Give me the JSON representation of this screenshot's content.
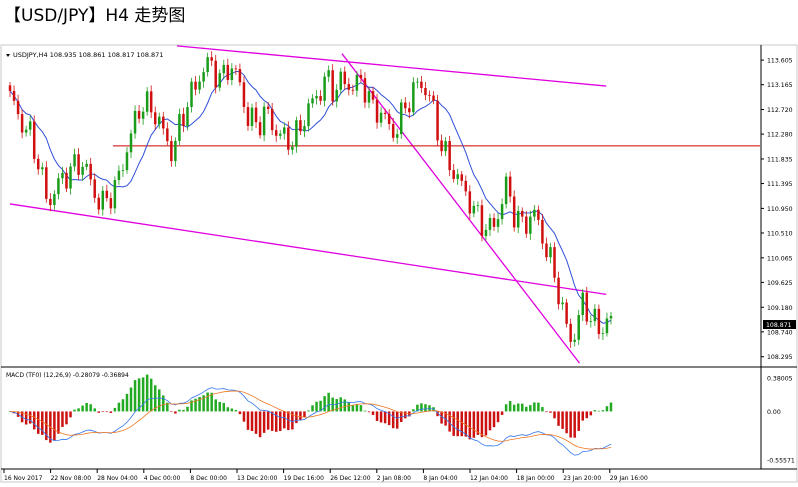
{
  "title": "【USD/JPY】H4 走势图",
  "chart_data": {
    "type": "candlestick",
    "symbol_header": "USDJPY,H4  108.935 108.861 108.817 108.871",
    "price_axis": {
      "ticks": [
        "113.605",
        "113.165",
        "112.720",
        "112.280",
        "111.835",
        "111.395",
        "110.950",
        "110.510",
        "110.065",
        "109.625",
        "109.180",
        "108.740",
        "108.295"
      ],
      "range": [
        108.2,
        113.75
      ],
      "current_price": "108.871"
    },
    "time_axis": {
      "labels": [
        "16 Nov 2017",
        "22 Nov 08:00",
        "28 Nov 04:00",
        "4 Dec 00:00",
        "8 Dec 00:00",
        "13 Dec 20:00",
        "19 Dec 16:00",
        "26 Dec 12:00",
        "2 Jan 08:00",
        "8 Jan 04:00",
        "12 Jan 04:00",
        "18 Jan 00:00",
        "23 Jan 20:00",
        "29 Jan 16:00"
      ]
    },
    "close_path": [
      112.9,
      112.6,
      112.3,
      111.7,
      111.1,
      111.3,
      111.6,
      111.8,
      111.6,
      111.2,
      111.0,
      111.3,
      111.9,
      112.4,
      112.9,
      112.7,
      112.3,
      112.0,
      112.5,
      113.0,
      113.4,
      113.5,
      113.3,
      113.5,
      113.2,
      112.6,
      112.4,
      112.7,
      112.3,
      112.1,
      112.3,
      112.6,
      112.9,
      113.3,
      113.0,
      113.3,
      113.1,
      113.2,
      112.8,
      112.6,
      112.3,
      112.6,
      112.9,
      113.3,
      112.9,
      112.2,
      111.8,
      111.4,
      111.2,
      110.8,
      110.5,
      110.8,
      111.3,
      110.8,
      110.7,
      110.8,
      110.4,
      109.8,
      109.0,
      108.6,
      109.2,
      109.0,
      108.8,
      108.9
    ],
    "horizontal_line": {
      "price": 112.07,
      "color": "#cc0000"
    },
    "trendlines": [
      {
        "from": {
          "index": 17.5,
          "price": 113.86
        },
        "to": {
          "index": 62.5,
          "price": 113.14
        },
        "color": "#e000e0"
      },
      {
        "from": {
          "index": 0,
          "price": 111.03
        },
        "to": {
          "index": 62.5,
          "price": 109.41
        },
        "color": "#e000e0"
      },
      {
        "from": {
          "index": 34.8,
          "price": 113.72
        },
        "to": {
          "index": 59.7,
          "price": 108.18
        },
        "color": "#e000e0"
      }
    ],
    "indicators": {
      "macd": {
        "label": "MACD (TF0) (12,26,9) -0.28079 -0.36894",
        "axis_ticks": [
          "0.38005",
          "0.00",
          "-0.55571"
        ],
        "range": [
          -0.6,
          0.45
        ]
      }
    }
  }
}
